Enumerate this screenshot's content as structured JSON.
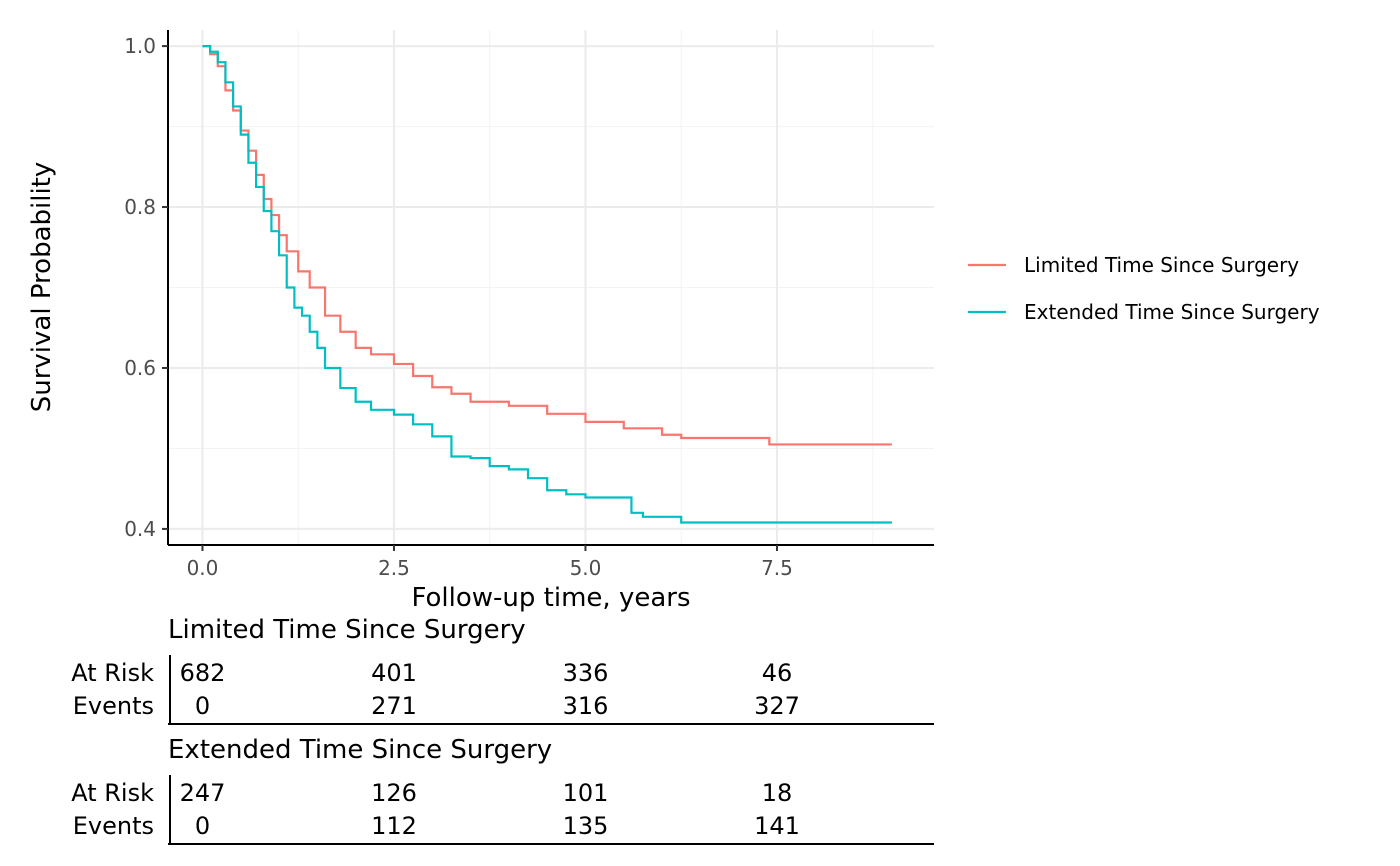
{
  "chart_data": {
    "type": "line",
    "title": "",
    "xlabel": "Follow-up time, years",
    "ylabel": "Survival Probability",
    "xlim": [
      -0.45,
      9.55
    ],
    "ylim": [
      0.38,
      1.02
    ],
    "x_ticks": [
      0,
      2.5,
      5,
      7.5
    ],
    "x_tick_labels": [
      "0.0",
      "2.5",
      "5.0",
      "7.5"
    ],
    "y_ticks": [
      0.4,
      0.6,
      0.8,
      1.0
    ],
    "y_tick_labels": [
      "0.4",
      "0.6",
      "0.8",
      "1.0"
    ],
    "grid": true,
    "legend_position": "right",
    "step": true,
    "series": [
      {
        "name": "Limited Time Since Surgery",
        "color": "#F8766D",
        "x": [
          0,
          0.1,
          0.2,
          0.3,
          0.4,
          0.5,
          0.6,
          0.7,
          0.8,
          0.9,
          1.0,
          1.1,
          1.25,
          1.4,
          1.6,
          1.8,
          2.0,
          2.2,
          2.5,
          2.75,
          3.0,
          3.25,
          3.5,
          4.0,
          4.5,
          5.0,
          5.5,
          6.0,
          6.25,
          7.0,
          7.35,
          7.4,
          9.0
        ],
        "y": [
          1.0,
          0.99,
          0.975,
          0.945,
          0.92,
          0.895,
          0.87,
          0.84,
          0.81,
          0.79,
          0.765,
          0.745,
          0.72,
          0.7,
          0.665,
          0.645,
          0.625,
          0.617,
          0.605,
          0.59,
          0.576,
          0.568,
          0.558,
          0.553,
          0.543,
          0.533,
          0.525,
          0.517,
          0.513,
          0.513,
          0.513,
          0.505,
          0.505
        ]
      },
      {
        "name": "Extended Time Since Surgery",
        "color": "#00BFC4",
        "x": [
          0,
          0.1,
          0.2,
          0.3,
          0.4,
          0.5,
          0.6,
          0.7,
          0.8,
          0.9,
          1.0,
          1.1,
          1.2,
          1.3,
          1.4,
          1.5,
          1.6,
          1.8,
          2.0,
          2.2,
          2.5,
          2.75,
          3.0,
          3.25,
          3.5,
          3.75,
          4.0,
          4.25,
          4.5,
          4.75,
          5.0,
          5.25,
          5.5,
          5.6,
          5.75,
          6.0,
          6.25,
          9.0
        ],
        "y": [
          1.0,
          0.993,
          0.98,
          0.955,
          0.925,
          0.89,
          0.855,
          0.825,
          0.795,
          0.77,
          0.74,
          0.7,
          0.675,
          0.665,
          0.645,
          0.625,
          0.6,
          0.575,
          0.558,
          0.548,
          0.542,
          0.53,
          0.515,
          0.49,
          0.488,
          0.478,
          0.474,
          0.463,
          0.448,
          0.443,
          0.439,
          0.439,
          0.439,
          0.42,
          0.415,
          0.415,
          0.408,
          0.408
        ]
      }
    ],
    "risk_table": {
      "row_labels": [
        "At Risk",
        "Events"
      ],
      "times": [
        0,
        2.5,
        5,
        7.5
      ],
      "groups": [
        {
          "name": "Limited Time Since Surgery",
          "at_risk": [
            "682",
            "401",
            "336",
            "46"
          ],
          "events": [
            "0",
            "271",
            "316",
            "327"
          ]
        },
        {
          "name": "Extended Time Since Surgery",
          "at_risk": [
            "247",
            "126",
            "101",
            "18"
          ],
          "events": [
            "0",
            "112",
            "135",
            "141"
          ]
        }
      ]
    }
  }
}
